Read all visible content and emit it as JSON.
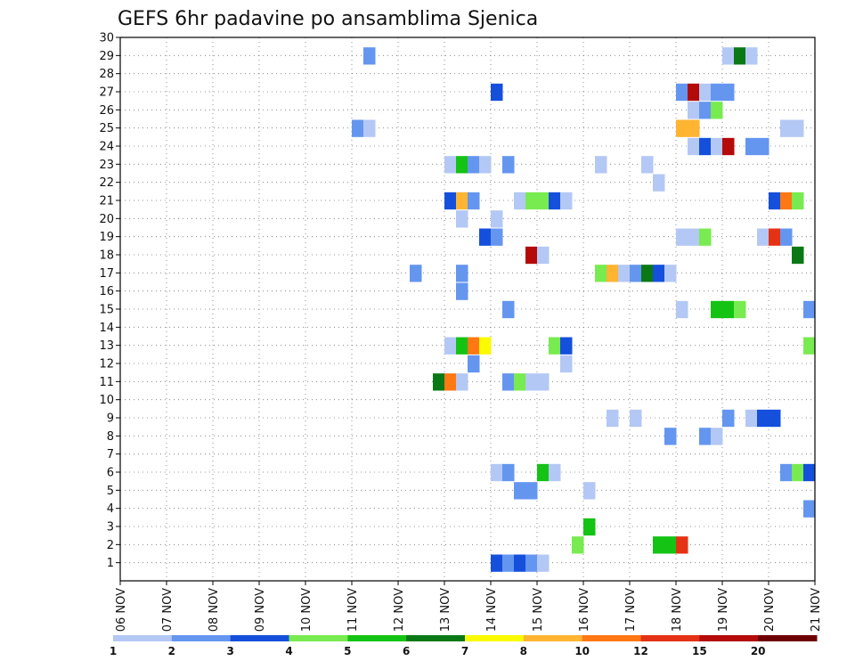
{
  "chart_data": {
    "type": "heatmap",
    "title": "GEFS 6hr padavine po ansamblima Sjenica",
    "xlabel": "",
    "ylabel": "",
    "x_tick_labels": [
      "06 NOV",
      "07 NOV",
      "08 NOV",
      "09 NOV",
      "10 NOV",
      "11 NOV",
      "12 NOV",
      "13 NOV",
      "14 NOV",
      "15 NOV",
      "16 NOV",
      "17 NOV",
      "18 NOV",
      "19 NOV",
      "20 NOV",
      "21 NOV"
    ],
    "x_range_days": [
      0,
      15
    ],
    "y_tick_labels": [
      "1",
      "2",
      "3",
      "4",
      "5",
      "6",
      "7",
      "8",
      "9",
      "10",
      "11",
      "12",
      "13",
      "14",
      "15",
      "16",
      "17",
      "18",
      "19",
      "20",
      "21",
      "22",
      "23",
      "24",
      "25",
      "26",
      "27",
      "28",
      "29",
      "30"
    ],
    "ylim": [
      0,
      30
    ],
    "grid": true,
    "legend": {
      "placement": "bottom",
      "levels": [
        "1",
        "2",
        "3",
        "4",
        "5",
        "6",
        "7",
        "8",
        "10",
        "12",
        "15",
        "20"
      ],
      "colors": [
        "#b4c8f5",
        "#6496f0",
        "#1450dc",
        "#78eb50",
        "#14c314",
        "#0a7814",
        "#fafa00",
        "#ffb432",
        "#ff7814",
        "#e63214",
        "#b40a0a",
        "#6e0000"
      ]
    },
    "cells": [
      {
        "y": 30,
        "x": []
      },
      {
        "y": 29,
        "x": [
          [
            5.25,
            2
          ],
          [
            13.0,
            1
          ],
          [
            13.25,
            6
          ],
          [
            13.5,
            1
          ]
        ]
      },
      {
        "y": 27,
        "x": [
          [
            8.0,
            3
          ],
          [
            12.0,
            2
          ],
          [
            12.25,
            11
          ],
          [
            12.5,
            1
          ],
          [
            12.75,
            2
          ],
          [
            13.0,
            2
          ]
        ]
      },
      {
        "y": 26,
        "x": [
          [
            12.25,
            1
          ],
          [
            12.5,
            2
          ],
          [
            12.75,
            4
          ]
        ]
      },
      {
        "y": 25,
        "x": [
          [
            5.0,
            2
          ],
          [
            5.25,
            1
          ],
          [
            12.0,
            8
          ],
          [
            12.25,
            8
          ],
          [
            14.25,
            1
          ],
          [
            14.5,
            1
          ]
        ]
      },
      {
        "y": 24,
        "x": [
          [
            12.25,
            1
          ],
          [
            12.5,
            3
          ],
          [
            12.75,
            1
          ],
          [
            13.0,
            11
          ],
          [
            13.5,
            2
          ],
          [
            13.75,
            2
          ]
        ]
      },
      {
        "y": 23,
        "x": [
          [
            7.0,
            1
          ],
          [
            7.25,
            5
          ],
          [
            7.5,
            2
          ],
          [
            7.75,
            1
          ],
          [
            8.25,
            2
          ],
          [
            10.25,
            1
          ],
          [
            11.25,
            1
          ]
        ]
      },
      {
        "y": 22,
        "x": [
          [
            11.5,
            1
          ]
        ]
      },
      {
        "y": 21,
        "x": [
          [
            7.0,
            3
          ],
          [
            7.25,
            8
          ],
          [
            7.5,
            2
          ],
          [
            8.5,
            1
          ],
          [
            8.75,
            4
          ],
          [
            9.0,
            4
          ],
          [
            9.25,
            3
          ],
          [
            9.5,
            1
          ],
          [
            14.0,
            3
          ],
          [
            14.25,
            9
          ],
          [
            14.5,
            4
          ]
        ]
      },
      {
        "y": 20,
        "x": [
          [
            7.25,
            1
          ],
          [
            8.0,
            1
          ]
        ]
      },
      {
        "y": 19,
        "x": [
          [
            7.75,
            3
          ],
          [
            8.0,
            2
          ],
          [
            12.0,
            1
          ],
          [
            12.25,
            1
          ],
          [
            12.5,
            4
          ],
          [
            13.75,
            1
          ],
          [
            14.0,
            10
          ],
          [
            14.25,
            2
          ]
        ]
      },
      {
        "y": 18,
        "x": [
          [
            8.75,
            11
          ],
          [
            9.0,
            1
          ],
          [
            14.5,
            6
          ]
        ]
      },
      {
        "y": 17,
        "x": [
          [
            6.25,
            2
          ],
          [
            7.25,
            2
          ],
          [
            10.25,
            4
          ],
          [
            10.5,
            8
          ],
          [
            10.75,
            1
          ],
          [
            11.0,
            2
          ],
          [
            11.25,
            6
          ],
          [
            11.5,
            3
          ],
          [
            11.75,
            1
          ]
        ]
      },
      {
        "y": 16,
        "x": [
          [
            7.25,
            2
          ]
        ]
      },
      {
        "y": 15,
        "x": [
          [
            8.25,
            2
          ],
          [
            12.0,
            1
          ],
          [
            12.75,
            5
          ],
          [
            13.0,
            5
          ],
          [
            13.25,
            4
          ],
          [
            14.75,
            2
          ]
        ]
      },
      {
        "y": 13,
        "x": [
          [
            7.0,
            1
          ],
          [
            7.25,
            5
          ],
          [
            7.5,
            9
          ],
          [
            7.75,
            7
          ],
          [
            9.25,
            4
          ],
          [
            9.5,
            3
          ],
          [
            14.75,
            4
          ]
        ]
      },
      {
        "y": 12,
        "x": [
          [
            7.5,
            2
          ],
          [
            9.5,
            1
          ]
        ]
      },
      {
        "y": 11,
        "x": [
          [
            6.75,
            6
          ],
          [
            7.0,
            9
          ],
          [
            7.25,
            1
          ],
          [
            8.25,
            2
          ],
          [
            8.5,
            4
          ],
          [
            8.75,
            1
          ],
          [
            9.0,
            1
          ]
        ]
      },
      {
        "y": 9,
        "x": [
          [
            10.5,
            1
          ],
          [
            11.0,
            1
          ],
          [
            13.0,
            2
          ],
          [
            13.5,
            1
          ],
          [
            13.75,
            3
          ],
          [
            14.0,
            3
          ]
        ]
      },
      {
        "y": 8,
        "x": [
          [
            11.75,
            2
          ],
          [
            12.5,
            2
          ],
          [
            12.75,
            1
          ]
        ]
      },
      {
        "y": 6,
        "x": [
          [
            8.0,
            1
          ],
          [
            8.25,
            2
          ],
          [
            9.0,
            5
          ],
          [
            9.25,
            1
          ],
          [
            14.25,
            2
          ],
          [
            14.5,
            4
          ],
          [
            14.75,
            3
          ]
        ]
      },
      {
        "y": 5,
        "x": [
          [
            8.5,
            2
          ],
          [
            8.75,
            2
          ],
          [
            10.0,
            1
          ]
        ]
      },
      {
        "y": 4,
        "x": [
          [
            14.75,
            2
          ]
        ]
      },
      {
        "y": 3,
        "x": [
          [
            10.0,
            5
          ]
        ]
      },
      {
        "y": 2,
        "x": [
          [
            9.75,
            4
          ],
          [
            11.5,
            5
          ],
          [
            11.75,
            5
          ],
          [
            12.0,
            10
          ]
        ]
      },
      {
        "y": 1,
        "x": [
          [
            8.0,
            3
          ],
          [
            8.25,
            2
          ],
          [
            8.5,
            3
          ],
          [
            8.75,
            2
          ],
          [
            9.0,
            1
          ]
        ]
      }
    ]
  }
}
